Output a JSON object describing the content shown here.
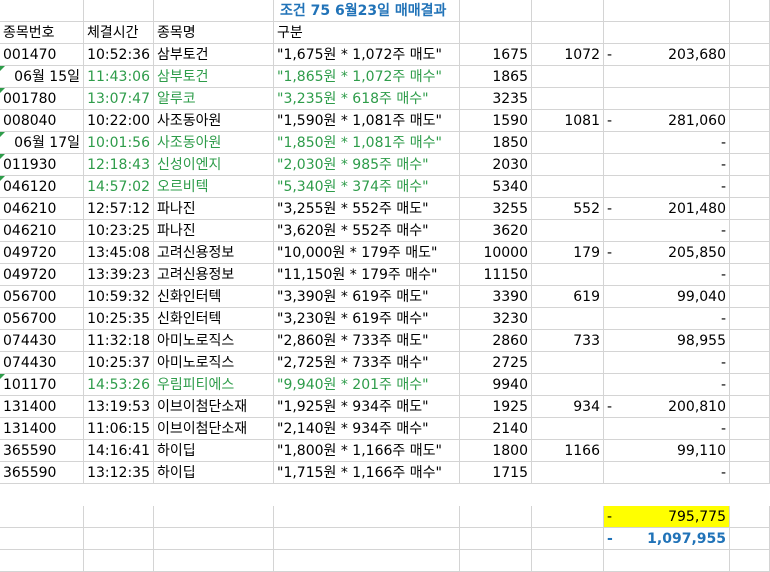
{
  "title": "조건 75 6월23일 매매결과",
  "headers": {
    "code": "종목번호",
    "time": "체결시간",
    "name": "종목명",
    "type": "구분"
  },
  "rows": [
    {
      "code": "001470",
      "time": "10:52:36",
      "name": "삼부토건",
      "desc": "\"1,675원 * 1,072주 매도\"",
      "price": "1675",
      "qty": "1072",
      "dash": "-",
      "pnl": "203,680",
      "green": false
    },
    {
      "code": "06월 15일",
      "time": "11:43:06",
      "name": "삼부토건",
      "desc": "\"1,865원 * 1,072주 매수\"",
      "price": "1865",
      "qty": "",
      "dash": "",
      "pnl": "",
      "green": true
    },
    {
      "code": "001780",
      "time": "13:07:47",
      "name": "알루코",
      "desc": "\"3,235원 * 618주 매수\"",
      "price": "3235",
      "qty": "",
      "dash": "",
      "pnl": "",
      "green": true
    },
    {
      "code": "008040",
      "time": "10:22:00",
      "name": "사조동아원",
      "desc": "\"1,590원 * 1,081주 매도\"",
      "price": "1590",
      "qty": "1081",
      "dash": "-",
      "pnl": "281,060",
      "green": false
    },
    {
      "code": "06월 17일",
      "time": "10:01:56",
      "name": "사조동아원",
      "desc": "\"1,850원 * 1,081주 매수\"",
      "price": "1850",
      "qty": "",
      "dash": "",
      "pnl": "-",
      "green": true
    },
    {
      "code": "011930",
      "time": "12:18:43",
      "name": "신성이엔지",
      "desc": "\"2,030원 * 985주 매수\"",
      "price": "2030",
      "qty": "",
      "dash": "",
      "pnl": "-",
      "green": true
    },
    {
      "code": "046120",
      "time": "14:57:02",
      "name": "오르비텍",
      "desc": "\"5,340원 * 374주 매수\"",
      "price": "5340",
      "qty": "",
      "dash": "",
      "pnl": "-",
      "green": true
    },
    {
      "code": "046210",
      "time": "12:57:12",
      "name": "파나진",
      "desc": "\"3,255원 * 552주 매도\"",
      "price": "3255",
      "qty": "552",
      "dash": "-",
      "pnl": "201,480",
      "green": false
    },
    {
      "code": "046210",
      "time": "10:23:25",
      "name": "파나진",
      "desc": "\"3,620원 * 552주 매수\"",
      "price": "3620",
      "qty": "",
      "dash": "",
      "pnl": "-",
      "green": false
    },
    {
      "code": "049720",
      "time": "13:45:08",
      "name": "고려신용정보",
      "desc": "\"10,000원 * 179주 매도\"",
      "price": "10000",
      "qty": "179",
      "dash": "-",
      "pnl": "205,850",
      "green": false
    },
    {
      "code": "049720",
      "time": "13:39:23",
      "name": "고려신용정보",
      "desc": "\"11,150원 * 179주 매수\"",
      "price": "11150",
      "qty": "",
      "dash": "",
      "pnl": "-",
      "green": false
    },
    {
      "code": "056700",
      "time": "10:59:32",
      "name": "신화인터텍",
      "desc": "\"3,390원 * 619주 매도\"",
      "price": "3390",
      "qty": "619",
      "dash": "",
      "pnl": "99,040",
      "green": false
    },
    {
      "code": "056700",
      "time": "10:25:35",
      "name": "신화인터텍",
      "desc": "\"3,230원 * 619주 매수\"",
      "price": "3230",
      "qty": "",
      "dash": "",
      "pnl": "-",
      "green": false
    },
    {
      "code": "074430",
      "time": "11:32:18",
      "name": "아미노로직스",
      "desc": "\"2,860원 * 733주 매도\"",
      "price": "2860",
      "qty": "733",
      "dash": "",
      "pnl": "98,955",
      "green": false
    },
    {
      "code": "074430",
      "time": "10:25:37",
      "name": "아미노로직스",
      "desc": "\"2,725원 * 733주 매수\"",
      "price": "2725",
      "qty": "",
      "dash": "",
      "pnl": "-",
      "green": false
    },
    {
      "code": "101170",
      "time": "14:53:26",
      "name": "우림피티에스",
      "desc": "\"9,940원 * 201주 매수\"",
      "price": "9940",
      "qty": "",
      "dash": "",
      "pnl": "-",
      "green": true
    },
    {
      "code": "131400",
      "time": "13:19:53",
      "name": "이브이첨단소재",
      "desc": "\"1,925원 * 934주 매도\"",
      "price": "1925",
      "qty": "934",
      "dash": "-",
      "pnl": "200,810",
      "green": false
    },
    {
      "code": "131400",
      "time": "11:06:15",
      "name": "이브이첨단소재",
      "desc": "\"2,140원 * 934주 매수\"",
      "price": "2140",
      "qty": "",
      "dash": "",
      "pnl": "-",
      "green": false
    },
    {
      "code": "365590",
      "time": "14:16:41",
      "name": "하이딥",
      "desc": "\"1,800원 * 1,166주 매도\"",
      "price": "1800",
      "qty": "1166",
      "dash": "",
      "pnl": "99,110",
      "green": false
    },
    {
      "code": "365590",
      "time": "13:12:35",
      "name": "하이딥",
      "desc": "\"1,715원 * 1,166주 매수\"",
      "price": "1715",
      "qty": "",
      "dash": "",
      "pnl": "-",
      "green": false
    }
  ],
  "totals": {
    "loss_dash": "-",
    "loss_total": "795,775",
    "grand_dash": "-",
    "grand_total": "1,097,955"
  },
  "colors": {
    "green_text": "#2e9c4a",
    "blue_text": "#2173b8",
    "highlight": "#ffff00",
    "grid": "#d4d4d4"
  }
}
